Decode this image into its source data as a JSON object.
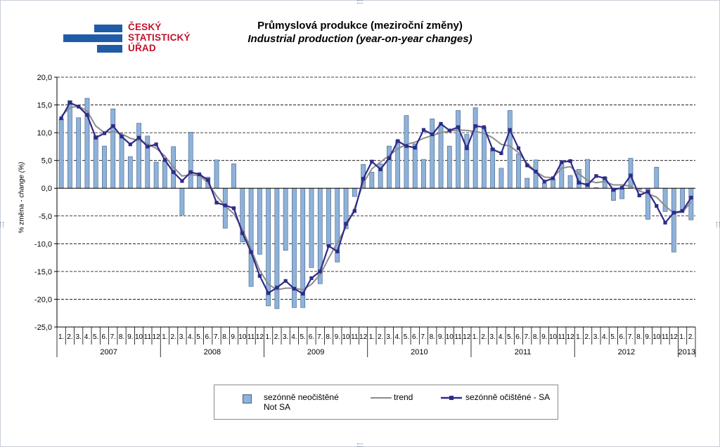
{
  "header": {
    "title_cz": "Průmyslová produkce (meziroční změny)",
    "title_en": "Industrial production (year-on-year changes)"
  },
  "logo": {
    "lines": [
      "ČESKÝ",
      "STATISTICKÝ",
      "ÚŘAD"
    ],
    "bar_color": "#1f5ca8",
    "text_color": "#c0122b"
  },
  "chart_data": {
    "type": "bar",
    "ylabel_main": "% změna - ",
    "ylabel_italic": "change (%)",
    "ylim": [
      -25,
      20
    ],
    "yticks": [
      "20,0",
      "15,0",
      "10,0",
      "5,0",
      "0,0",
      "-5,0",
      "-10,0",
      "-15,0",
      "-20,0",
      "-25,0"
    ],
    "grid": true,
    "legend_placement": "bottom",
    "month_labels": [
      "1.",
      "2.",
      "3.",
      "4.",
      "5.",
      "6.",
      "7.",
      "8.",
      "9.",
      "10",
      "11",
      "12"
    ],
    "years": [
      "2007",
      "2008",
      "2009",
      "2010",
      "2011",
      "2012",
      "2013"
    ],
    "final_year_months": [
      "1.",
      "2."
    ],
    "legend": {
      "not_sa_cz": "sezónně neočištěné",
      "not_sa_en": "Not SA",
      "trend": "trend",
      "sa": "sezónně očištěné - SA"
    },
    "colors": {
      "bars": "#8fb2d9",
      "bar_border": "#3f5f88",
      "trend": "#8c8c8c",
      "sa": "#2e2b8a"
    },
    "series": [
      {
        "name": "sezónně neočištěné Not SA",
        "values": [
          12.5,
          15.8,
          12.7,
          16.2,
          9.5,
          7.6,
          14.3,
          9.7,
          5.7,
          11.7,
          9.4,
          4.7,
          5.0,
          7.5,
          -4.8,
          10.1,
          2.5,
          2.0,
          5.1,
          -7.2,
          4.4,
          -9.7,
          -17.7,
          -11.9,
          -21.2,
          -21.7,
          -11.2,
          -21.5,
          -21.5,
          -14.3,
          -17.2,
          -10.4,
          -13.3,
          -7.3,
          -1.5,
          4.3,
          2.9,
          4.4,
          7.6,
          8.6,
          13.1,
          8.0,
          5.2,
          12.5,
          11.5,
          7.6,
          14.0,
          9.7,
          14.5,
          11.0,
          7.2,
          3.6,
          14.0,
          6.2,
          1.8,
          5.1,
          0.9,
          1.6,
          4.4,
          2.3,
          3.4,
          5.2,
          0.1,
          2.0,
          -2.2,
          -1.9,
          5.4,
          -0.3,
          -5.6,
          3.8,
          -4.2,
          -11.5,
          -4.0,
          -5.7
        ]
      },
      {
        "name": "trend",
        "values": [
          13.0,
          14.5,
          14.8,
          13.9,
          11.2,
          10.0,
          10.2,
          9.8,
          9.0,
          8.6,
          8.0,
          7.2,
          5.8,
          3.8,
          2.2,
          2.4,
          2.3,
          1.0,
          -1.4,
          -3.2,
          -4.6,
          -7.4,
          -11.0,
          -14.8,
          -17.3,
          -18.3,
          -18.0,
          -18.0,
          -18.3,
          -17.3,
          -15.6,
          -12.6,
          -9.8,
          -7.0,
          -3.6,
          0.9,
          3.5,
          4.7,
          5.9,
          7.1,
          7.9,
          8.3,
          9.0,
          9.5,
          10.0,
          10.3,
          10.5,
          10.4,
          10.2,
          9.9,
          9.1,
          7.9,
          7.6,
          6.4,
          4.5,
          3.0,
          2.0,
          1.9,
          3.6,
          3.9,
          2.6,
          1.4,
          1.0,
          1.2,
          0.6,
          0.6,
          0.4,
          -0.5,
          -1.0,
          -1.6,
          -3.2,
          -4.5,
          -4.3,
          -2.5
        ]
      },
      {
        "name": "sezónně očištěné - SA",
        "values": [
          12.6,
          15.4,
          14.7,
          13.2,
          9.1,
          9.9,
          11.2,
          9.3,
          7.9,
          9.1,
          7.5,
          7.9,
          5.1,
          2.9,
          1.3,
          2.9,
          2.5,
          1.5,
          -2.6,
          -3.1,
          -3.6,
          -8.1,
          -11.5,
          -15.8,
          -18.9,
          -17.9,
          -16.7,
          -18.1,
          -19.0,
          -16.2,
          -15.0,
          -10.4,
          -11.4,
          -6.4,
          -4.1,
          1.7,
          4.8,
          3.4,
          5.4,
          8.5,
          7.6,
          7.3,
          10.5,
          9.7,
          11.6,
          10.4,
          11.0,
          7.2,
          11.2,
          11.0,
          7.0,
          6.3,
          10.5,
          7.2,
          4.1,
          3.0,
          1.2,
          1.8,
          4.7,
          4.9,
          1.0,
          0.6,
          2.2,
          1.8,
          -0.3,
          0.1,
          2.3,
          -1.3,
          -0.6,
          -3.2,
          -6.2,
          -4.4,
          -4.1,
          -1.7
        ]
      }
    ]
  }
}
